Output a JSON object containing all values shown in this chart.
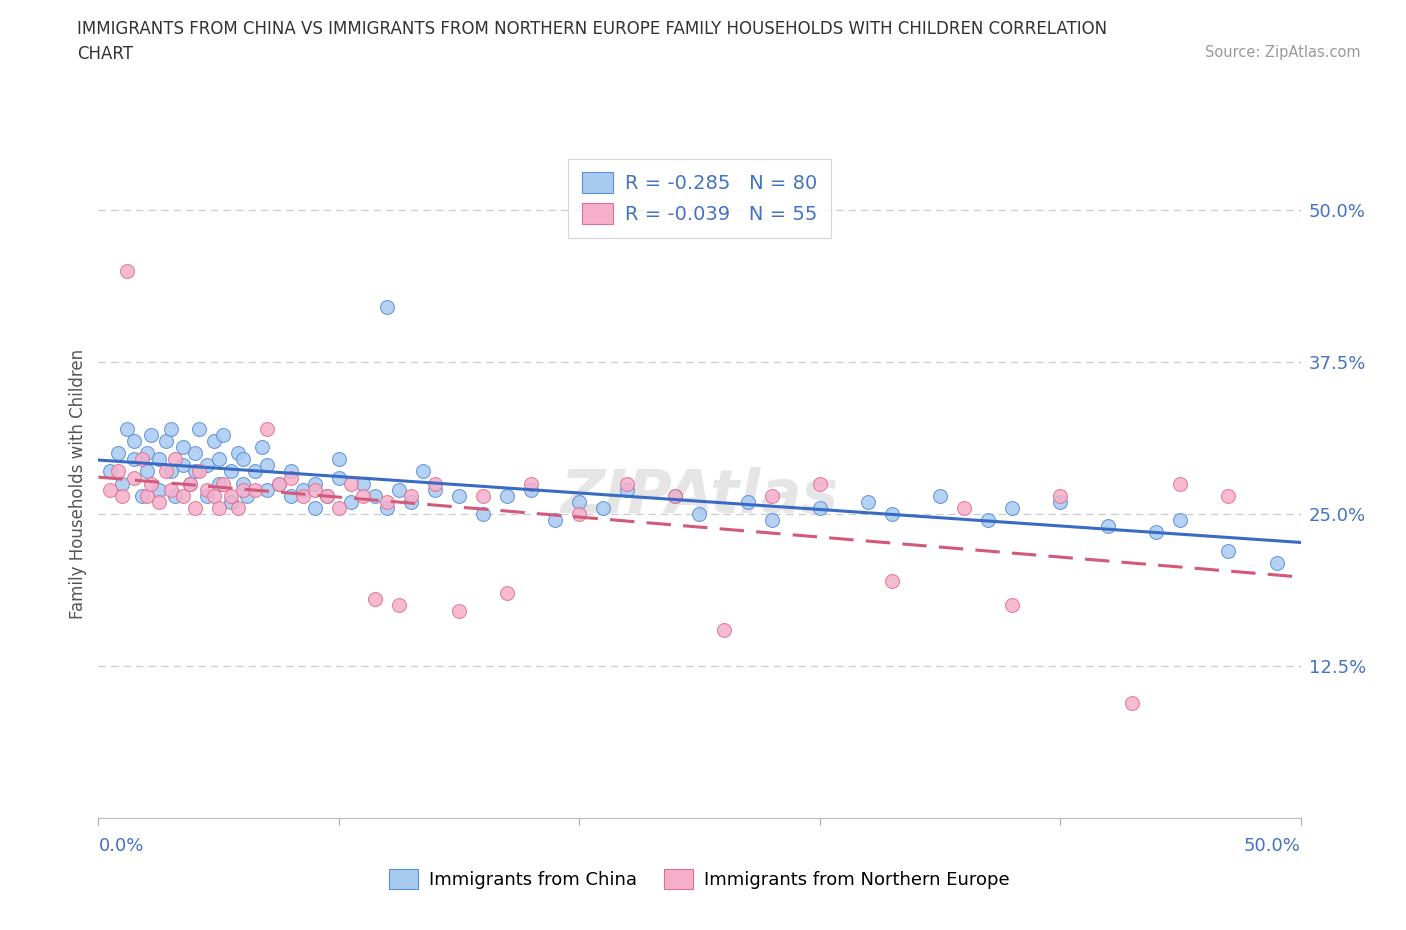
{
  "title_line1": "IMMIGRANTS FROM CHINA VS IMMIGRANTS FROM NORTHERN EUROPE FAMILY HOUSEHOLDS WITH CHILDREN CORRELATION",
  "title_line2": "CHART",
  "source": "Source: ZipAtlas.com",
  "ylabel": "Family Households with Children",
  "china_color": "#A8CBF0",
  "china_edge_color": "#5B8DD9",
  "china_line_color": "#3A6BC4",
  "northern_color": "#F5AFCA",
  "northern_edge_color": "#E07090",
  "northern_line_color": "#D45878",
  "xlim": [
    0.0,
    0.5
  ],
  "ylim": [
    0.0,
    0.55
  ],
  "yticks": [
    0.125,
    0.25,
    0.375,
    0.5
  ],
  "ytick_labels": [
    "12.5%",
    "25.0%",
    "37.5%",
    "50.0%"
  ],
  "grid_color": "#CCCCCC",
  "bg_color": "#FFFFFF",
  "title_color": "#333333",
  "axis_label_color": "#4472C4",
  "watermark": "ZIPAtlas",
  "china_r": -0.285,
  "china_n": 80,
  "northern_r": -0.039,
  "northern_n": 55,
  "china_x": [
    0.005,
    0.008,
    0.01,
    0.012,
    0.015,
    0.015,
    0.018,
    0.02,
    0.02,
    0.022,
    0.025,
    0.025,
    0.028,
    0.03,
    0.03,
    0.032,
    0.035,
    0.035,
    0.038,
    0.04,
    0.04,
    0.042,
    0.045,
    0.045,
    0.048,
    0.05,
    0.05,
    0.052,
    0.055,
    0.055,
    0.058,
    0.06,
    0.06,
    0.062,
    0.065,
    0.068,
    0.07,
    0.07,
    0.075,
    0.08,
    0.08,
    0.085,
    0.09,
    0.09,
    0.095,
    0.1,
    0.1,
    0.105,
    0.11,
    0.115,
    0.12,
    0.12,
    0.125,
    0.13,
    0.135,
    0.14,
    0.15,
    0.16,
    0.17,
    0.18,
    0.19,
    0.2,
    0.21,
    0.22,
    0.24,
    0.25,
    0.27,
    0.28,
    0.3,
    0.32,
    0.33,
    0.35,
    0.37,
    0.38,
    0.4,
    0.42,
    0.44,
    0.45,
    0.47,
    0.49
  ],
  "china_y": [
    0.285,
    0.3,
    0.275,
    0.32,
    0.295,
    0.31,
    0.265,
    0.285,
    0.3,
    0.315,
    0.27,
    0.295,
    0.31,
    0.285,
    0.32,
    0.265,
    0.29,
    0.305,
    0.275,
    0.285,
    0.3,
    0.32,
    0.265,
    0.29,
    0.31,
    0.275,
    0.295,
    0.315,
    0.26,
    0.285,
    0.3,
    0.275,
    0.295,
    0.265,
    0.285,
    0.305,
    0.27,
    0.29,
    0.275,
    0.265,
    0.285,
    0.27,
    0.255,
    0.275,
    0.265,
    0.28,
    0.295,
    0.26,
    0.275,
    0.265,
    0.42,
    0.255,
    0.27,
    0.26,
    0.285,
    0.27,
    0.265,
    0.25,
    0.265,
    0.27,
    0.245,
    0.26,
    0.255,
    0.27,
    0.265,
    0.25,
    0.26,
    0.245,
    0.255,
    0.26,
    0.25,
    0.265,
    0.245,
    0.255,
    0.26,
    0.24,
    0.235,
    0.245,
    0.22,
    0.21
  ],
  "northern_x": [
    0.005,
    0.008,
    0.01,
    0.012,
    0.015,
    0.018,
    0.02,
    0.022,
    0.025,
    0.028,
    0.03,
    0.032,
    0.035,
    0.038,
    0.04,
    0.042,
    0.045,
    0.048,
    0.05,
    0.052,
    0.055,
    0.058,
    0.06,
    0.065,
    0.07,
    0.075,
    0.08,
    0.085,
    0.09,
    0.095,
    0.1,
    0.105,
    0.11,
    0.115,
    0.12,
    0.125,
    0.13,
    0.14,
    0.15,
    0.16,
    0.17,
    0.18,
    0.2,
    0.22,
    0.24,
    0.26,
    0.28,
    0.3,
    0.33,
    0.36,
    0.38,
    0.4,
    0.43,
    0.45,
    0.47
  ],
  "northern_y": [
    0.27,
    0.285,
    0.265,
    0.45,
    0.28,
    0.295,
    0.265,
    0.275,
    0.26,
    0.285,
    0.27,
    0.295,
    0.265,
    0.275,
    0.255,
    0.285,
    0.27,
    0.265,
    0.255,
    0.275,
    0.265,
    0.255,
    0.27,
    0.27,
    0.32,
    0.275,
    0.28,
    0.265,
    0.27,
    0.265,
    0.255,
    0.275,
    0.265,
    0.18,
    0.26,
    0.175,
    0.265,
    0.275,
    0.17,
    0.265,
    0.185,
    0.275,
    0.25,
    0.275,
    0.265,
    0.155,
    0.265,
    0.275,
    0.195,
    0.255,
    0.175,
    0.265,
    0.095,
    0.275,
    0.265
  ]
}
